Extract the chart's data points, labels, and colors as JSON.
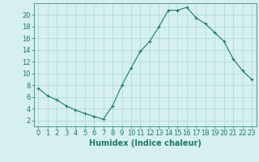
{
  "x": [
    0,
    1,
    2,
    3,
    4,
    5,
    6,
    7,
    8,
    9,
    10,
    11,
    12,
    13,
    14,
    15,
    16,
    17,
    18,
    19,
    20,
    21,
    22,
    23
  ],
  "y": [
    7.5,
    6.2,
    5.5,
    4.5,
    3.8,
    3.2,
    2.7,
    2.2,
    4.5,
    8.0,
    11.0,
    13.8,
    15.5,
    18.0,
    20.8,
    20.8,
    21.3,
    19.5,
    18.5,
    17.0,
    15.5,
    12.5,
    10.5,
    9.0
  ],
  "line_color": "#1a7a64",
  "marker": "+",
  "marker_size": 3,
  "bg_color": "#d6f0f0",
  "grid_color": "#a8d8d8",
  "xlabel": "Humidex (Indice chaleur)",
  "xlabel_fontsize": 7,
  "tick_fontsize": 6,
  "ylim": [
    1,
    22
  ],
  "yticks": [
    2,
    4,
    6,
    8,
    10,
    12,
    14,
    16,
    18,
    20
  ],
  "xlim": [
    -0.5,
    23.5
  ],
  "xticks": [
    0,
    1,
    2,
    3,
    4,
    5,
    6,
    7,
    8,
    9,
    10,
    11,
    12,
    13,
    14,
    15,
    16,
    17,
    18,
    19,
    20,
    21,
    22,
    23
  ]
}
